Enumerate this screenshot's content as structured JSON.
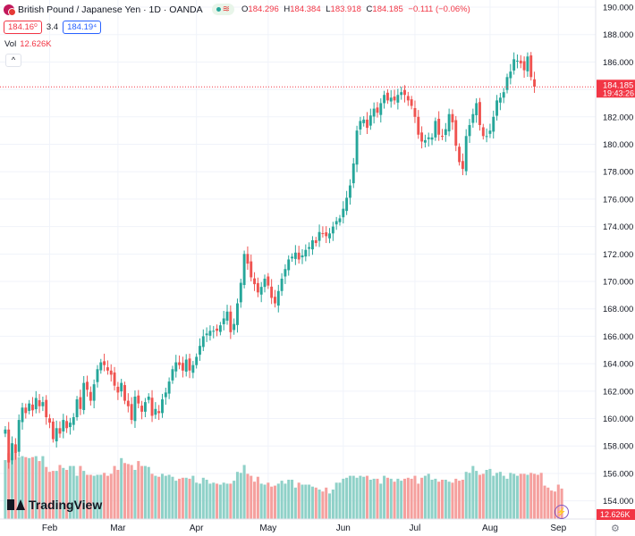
{
  "header": {
    "title": "British Pound / Japanese Yen · 1D · OANDA",
    "ohlc": [
      {
        "label": "O",
        "value": "184.296"
      },
      {
        "label": "H",
        "value": "184.384"
      },
      {
        "label": "L",
        "value": "183.918"
      },
      {
        "label": "C",
        "value": "184.185"
      }
    ],
    "change": "−0.111 (−0.06%)",
    "sell_price": "184.16⁰",
    "spread": "3.4",
    "buy_price": "184.19⁴",
    "volume_label": "Vol",
    "volume_value": "12.626K",
    "collapse_glyph": "^"
  },
  "last_price": {
    "value": "184.185",
    "countdown": "19:43:26"
  },
  "volume_badge": "12.626K",
  "logo_text": "TradingView",
  "colors": {
    "up": "#26a69a",
    "down": "#ef5350",
    "up_vol": "#8fd1c8",
    "down_vol": "#f5a09e",
    "grid": "#f0f3fa",
    "axis_text": "#131722",
    "last_line": "#f23645"
  },
  "chart_data": {
    "type": "candlestick",
    "title": "British Pound / Japanese Yen · 1D · OANDA",
    "y_axis": {
      "range": [
        153,
        190
      ],
      "ticks": [
        154,
        156,
        158,
        160,
        162,
        164,
        166,
        168,
        170,
        172,
        174,
        176,
        178,
        180,
        182,
        184,
        186,
        188,
        190
      ]
    },
    "x_axis": {
      "labels": [
        "Feb",
        "Mar",
        "Apr",
        "May",
        "Jun",
        "Jul",
        "Aug",
        "Sep"
      ],
      "label_bar_index": [
        13,
        33,
        56,
        77,
        99,
        120,
        142,
        162
      ]
    },
    "total_slots": 164,
    "volume_scale_max": 100,
    "closes": [
      159.2,
      156.8,
      158.2,
      157.5,
      159.9,
      160.8,
      160.4,
      161.1,
      160.6,
      161.5,
      160.9,
      161.2,
      160.1,
      159.7,
      158.5,
      159.3,
      158.9,
      159.9,
      159.3,
      159.7,
      160.1,
      161.4,
      160.7,
      162.6,
      162.1,
      161.3,
      162.5,
      163.6,
      164.1,
      163.9,
      163.5,
      163.2,
      162.4,
      161.9,
      162.6,
      161.3,
      160.9,
      159.9,
      161.6,
      161.1,
      160.5,
      161.2,
      161.6,
      160.2,
      160.7,
      160.4,
      161.4,
      161.9,
      162.7,
      163.6,
      164.1,
      163.9,
      163.5,
      164.3,
      163.5,
      163.9,
      164.5,
      165.3,
      166.0,
      166.2,
      166.4,
      166.4,
      166.4,
      166.8,
      167.3,
      167.8,
      166.3,
      166.9,
      168.4,
      169.9,
      172.0,
      171.3,
      170.3,
      169.8,
      169.2,
      169.6,
      170.2,
      169.7,
      168.8,
      168.4,
      169.3,
      170.2,
      170.9,
      171.6,
      171.8,
      172.1,
      171.6,
      171.9,
      172.3,
      172.5,
      173.0,
      172.8,
      173.6,
      173.5,
      173.3,
      173.5,
      174.0,
      174.4,
      174.6,
      175.3,
      176.1,
      177.0,
      178.6,
      181.0,
      181.7,
      181.8,
      181.2,
      182.1,
      182.6,
      182.3,
      183.0,
      183.6,
      183.2,
      183.4,
      183.2,
      183.6,
      183.8,
      183.6,
      183.2,
      182.8,
      182.0,
      180.7,
      180.2,
      180.3,
      180.5,
      180.5,
      181.7,
      180.7,
      180.6,
      181.1,
      182.2,
      181.6,
      179.9,
      178.7,
      178.2,
      180.6,
      181.4,
      182.2,
      183.0,
      181.4,
      180.6,
      180.6,
      181.0,
      182.0,
      183.2,
      183.4,
      183.8,
      184.9,
      185.3,
      186.2,
      186.1,
      185.9,
      185.4,
      186.4,
      184.9,
      184.2
    ],
    "volumes": [
      60,
      67,
      62,
      68,
      63,
      64,
      63,
      62,
      63,
      64,
      59,
      64,
      53,
      48,
      49,
      49,
      55,
      52,
      50,
      54,
      54,
      44,
      54,
      49,
      45,
      45,
      44,
      45,
      45,
      47,
      44,
      46,
      54,
      50,
      62,
      57,
      56,
      55,
      50,
      59,
      54,
      54,
      53,
      46,
      44,
      43,
      46,
      44,
      45,
      43,
      39,
      41,
      42,
      42,
      41,
      44,
      37,
      36,
      42,
      40,
      36,
      37,
      36,
      35,
      37,
      36,
      36,
      39,
      48,
      47,
      55,
      46,
      44,
      38,
      43,
      36,
      35,
      37,
      33,
      34,
      36,
      39,
      36,
      40,
      40,
      32,
      37,
      35,
      35,
      35,
      33,
      32,
      30,
      28,
      32,
      26,
      30,
      37,
      37,
      41,
      42,
      44,
      44,
      42,
      44,
      43,
      44,
      40,
      41,
      41,
      36,
      44,
      42,
      41,
      38,
      41,
      39,
      41,
      42,
      41,
      44,
      36,
      42,
      44,
      46,
      40,
      41,
      38,
      40,
      40,
      38,
      37,
      41,
      39,
      40,
      48,
      47,
      54,
      49,
      45,
      46,
      50,
      51,
      44,
      47,
      48,
      44,
      41,
      47,
      46,
      44,
      46,
      46,
      45,
      47,
      46,
      45,
      47,
      34,
      32,
      29,
      28,
      35,
      31
    ]
  }
}
